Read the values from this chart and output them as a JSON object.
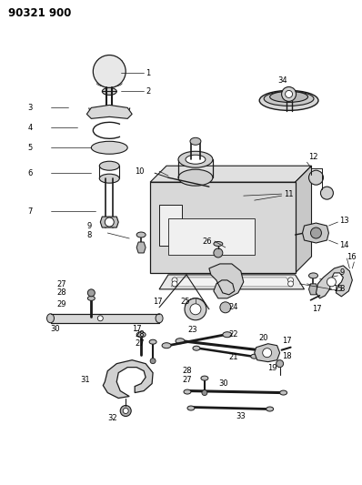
{
  "title": "90321 900",
  "bg_color": "#ffffff",
  "fig_width": 3.98,
  "fig_height": 5.33,
  "dpi": 100,
  "line_color": "#1a1a1a",
  "lw": 0.7
}
